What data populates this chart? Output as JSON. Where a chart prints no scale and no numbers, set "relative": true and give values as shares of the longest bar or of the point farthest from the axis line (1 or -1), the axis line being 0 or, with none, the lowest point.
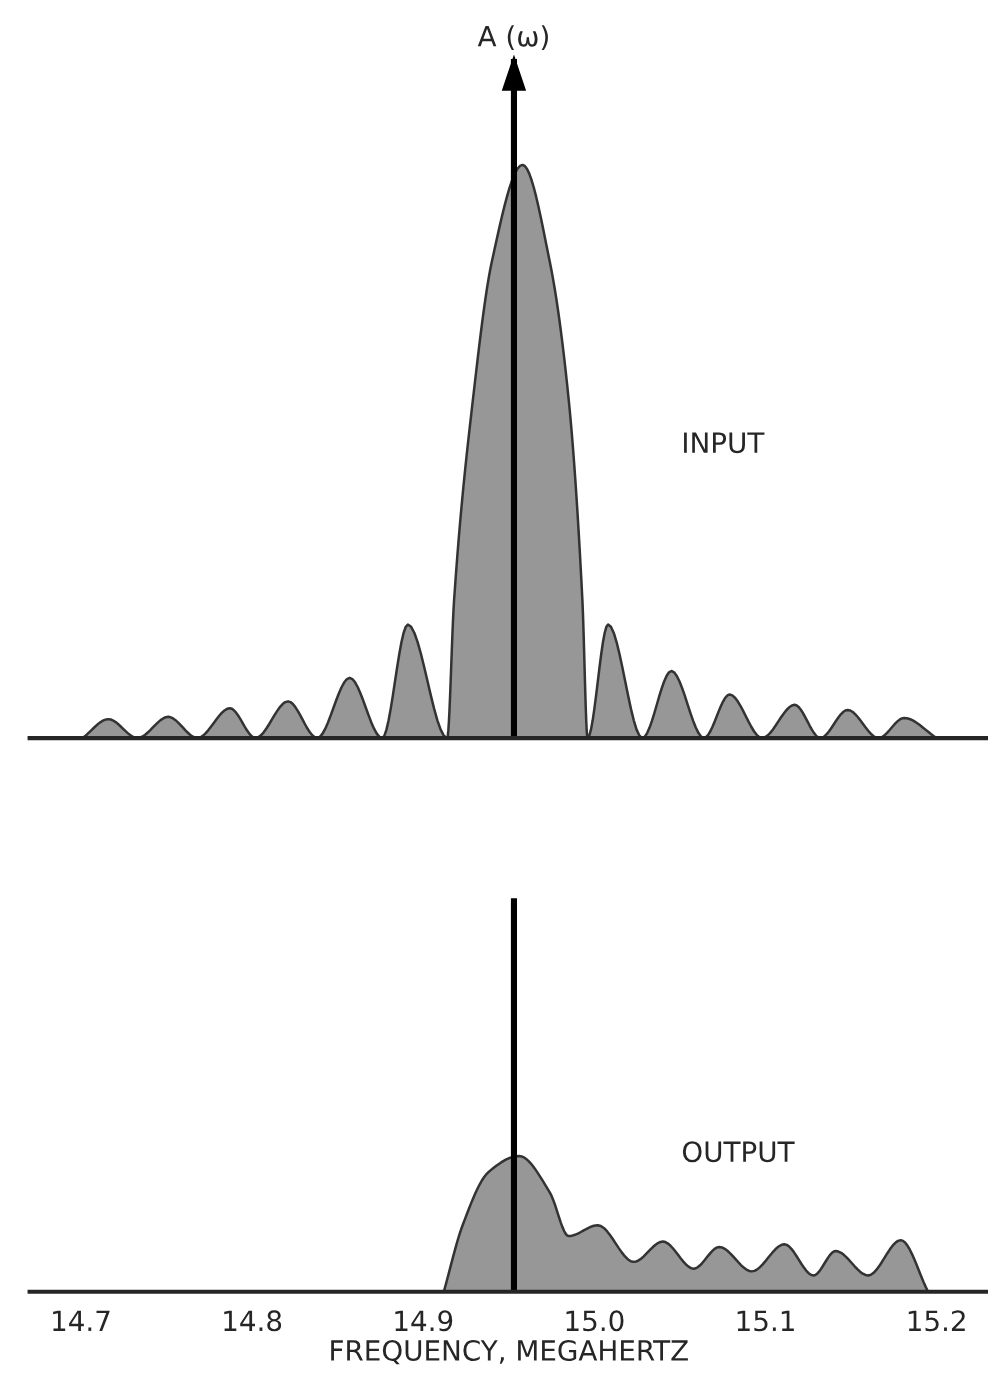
{
  "chart_data": [
    {
      "type": "area",
      "relative": true,
      "x": [
        14.701,
        14.716,
        14.733,
        14.751,
        14.768,
        14.787,
        14.802,
        14.821,
        14.838,
        14.857,
        14.876,
        14.891,
        14.914,
        14.918,
        14.929,
        14.94,
        14.958,
        14.974,
        14.985,
        14.993,
        14.996,
        15.008,
        15.028,
        15.045,
        15.064,
        15.079,
        15.098,
        15.117,
        15.132,
        15.148,
        15.166,
        15.181,
        15.2
      ],
      "series": [
        {
          "color": "#8c8c8c",
          "values": [
            0,
            0.033,
            0,
            0.037,
            0,
            0.052,
            0,
            0.064,
            0,
            0.105,
            0,
            0.198,
            0,
            0.24,
            0.59,
            0.83,
            1,
            0.83,
            0.59,
            0.24,
            0,
            0.198,
            0,
            0.117,
            0,
            0.076,
            0,
            0.058,
            0,
            0.049,
            0,
            0.035,
            0
          ]
        }
      ],
      "xlim": [
        14.67,
        15.23
      ],
      "xticks": [
        {
          "value": 14.7,
          "label": null
        },
        {
          "value": 14.8,
          "label": null
        },
        {
          "value": 14.9,
          "label": null
        },
        {
          "value": 15.0,
          "label": null
        },
        {
          "value": 15.1,
          "label": null
        },
        {
          "value": 15.2,
          "label": null
        }
      ],
      "tick_labels": false,
      "grid": false,
      "marker": "none",
      "ref_lines": [
        {
          "axis": "x",
          "value": 14.953,
          "label": "A (ω)"
        }
      ],
      "annotations": [
        "INPUT"
      ]
    },
    {
      "type": "area",
      "relative": true,
      "x": [
        14.912,
        14.923,
        14.938,
        14.956,
        14.974,
        14.985,
        15.002,
        15.023,
        15.04,
        15.058,
        15.073,
        15.092,
        15.111,
        15.128,
        15.141,
        15.16,
        15.179,
        15.195
      ],
      "series": [
        {
          "color": "#8c8c8c",
          "values": [
            0,
            0.49,
            0.88,
            1,
            0.73,
            0.41,
            0.49,
            0.22,
            0.37,
            0.17,
            0.33,
            0.15,
            0.35,
            0.12,
            0.3,
            0.12,
            0.38,
            0
          ]
        }
      ],
      "xlim": [
        14.67,
        15.23
      ],
      "xticks": [
        14.7,
        14.8,
        14.9,
        {
          "value": 15.0,
          "label": "15.0"
        },
        15.1,
        15.2
      ],
      "tick_labels": "x",
      "grid": false,
      "marker": "none",
      "xlabel": "FREQUENCY, MEGAHERTZ",
      "ref_lines": [
        {
          "axis": "x",
          "value": 14.953
        }
      ],
      "annotations": [
        "OUTPUT"
      ]
    }
  ]
}
